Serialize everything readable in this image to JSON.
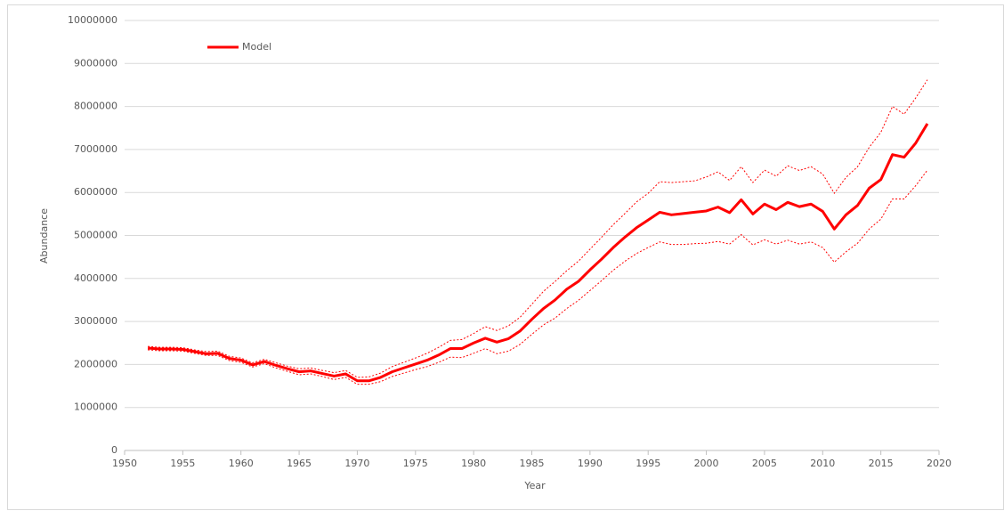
{
  "chart_data": {
    "type": "line",
    "xlabel": "Year",
    "ylabel": "Abundance",
    "x": [
      1952,
      1953,
      1954,
      1955,
      1956,
      1957,
      1958,
      1959,
      1960,
      1961,
      1962,
      1963,
      1964,
      1965,
      1966,
      1967,
      1968,
      1969,
      1970,
      1971,
      1972,
      1973,
      1974,
      1975,
      1976,
      1977,
      1978,
      1979,
      1980,
      1981,
      1982,
      1983,
      1984,
      1985,
      1986,
      1987,
      1988,
      1989,
      1990,
      1991,
      1992,
      1993,
      1994,
      1995,
      1996,
      1997,
      1998,
      1999,
      2000,
      2001,
      2002,
      2003,
      2004,
      2005,
      2006,
      2007,
      2008,
      2009,
      2010,
      2011,
      2012,
      2013,
      2014,
      2015,
      2016,
      2017,
      2018,
      2019
    ],
    "series": [
      {
        "name": "Model",
        "color": "#ff0000",
        "values": [
          2380000,
          2360000,
          2360000,
          2350000,
          2300000,
          2250000,
          2260000,
          2140000,
          2100000,
          1990000,
          2070000,
          1980000,
          1900000,
          1830000,
          1850000,
          1790000,
          1730000,
          1780000,
          1620000,
          1620000,
          1700000,
          1830000,
          1920000,
          2010000,
          2100000,
          2220000,
          2370000,
          2370000,
          2500000,
          2610000,
          2520000,
          2600000,
          2780000,
          3050000,
          3300000,
          3500000,
          3750000,
          3930000,
          4200000,
          4450000,
          4720000,
          4960000,
          5180000,
          5360000,
          5540000,
          5480000,
          5510000,
          5540000,
          5570000,
          5660000,
          5530000,
          5830000,
          5500000,
          5730000,
          5600000,
          5770000,
          5670000,
          5730000,
          5560000,
          5150000,
          5480000,
          5700000,
          6100000,
          6300000,
          6880000,
          6820000,
          7150000,
          7600000
        ],
        "upper": [
          2420000,
          2400000,
          2400000,
          2390000,
          2340000,
          2300000,
          2310000,
          2190000,
          2150000,
          2040000,
          2120000,
          2040000,
          1960000,
          1900000,
          1920000,
          1860000,
          1810000,
          1860000,
          1700000,
          1710000,
          1800000,
          1950000,
          2050000,
          2150000,
          2260000,
          2400000,
          2560000,
          2580000,
          2720000,
          2880000,
          2790000,
          2900000,
          3100000,
          3400000,
          3700000,
          3930000,
          4180000,
          4400000,
          4680000,
          4960000,
          5250000,
          5510000,
          5780000,
          5980000,
          6250000,
          6230000,
          6250000,
          6270000,
          6360000,
          6480000,
          6280000,
          6600000,
          6230000,
          6520000,
          6380000,
          6620000,
          6510000,
          6600000,
          6430000,
          5980000,
          6350000,
          6600000,
          7050000,
          7400000,
          8000000,
          7820000,
          8200000,
          8620000
        ],
        "lower": [
          2340000,
          2320000,
          2320000,
          2310000,
          2260000,
          2210000,
          2210000,
          2090000,
          2050000,
          1940000,
          2020000,
          1920000,
          1840000,
          1760000,
          1780000,
          1720000,
          1650000,
          1700000,
          1540000,
          1540000,
          1600000,
          1720000,
          1800000,
          1880000,
          1950000,
          2050000,
          2170000,
          2160000,
          2260000,
          2370000,
          2250000,
          2310000,
          2470000,
          2700000,
          2920000,
          3080000,
          3300000,
          3490000,
          3720000,
          3950000,
          4190000,
          4400000,
          4580000,
          4720000,
          4850000,
          4790000,
          4790000,
          4810000,
          4820000,
          4860000,
          4800000,
          5020000,
          4780000,
          4900000,
          4800000,
          4890000,
          4800000,
          4850000,
          4720000,
          4380000,
          4620000,
          4820000,
          5150000,
          5380000,
          5850000,
          5850000,
          6160000,
          6520000
        ]
      }
    ],
    "xlim": [
      1950,
      2020
    ],
    "xticks": [
      1950,
      1955,
      1960,
      1965,
      1970,
      1975,
      1980,
      1985,
      1990,
      1995,
      2000,
      2005,
      2010,
      2015,
      2020
    ],
    "ylim": [
      0,
      10000000
    ],
    "yticks": [
      0,
      1000000,
      2000000,
      3000000,
      4000000,
      5000000,
      6000000,
      7000000,
      8000000,
      9000000,
      10000000
    ],
    "grid": true,
    "legend": "upper-left"
  }
}
